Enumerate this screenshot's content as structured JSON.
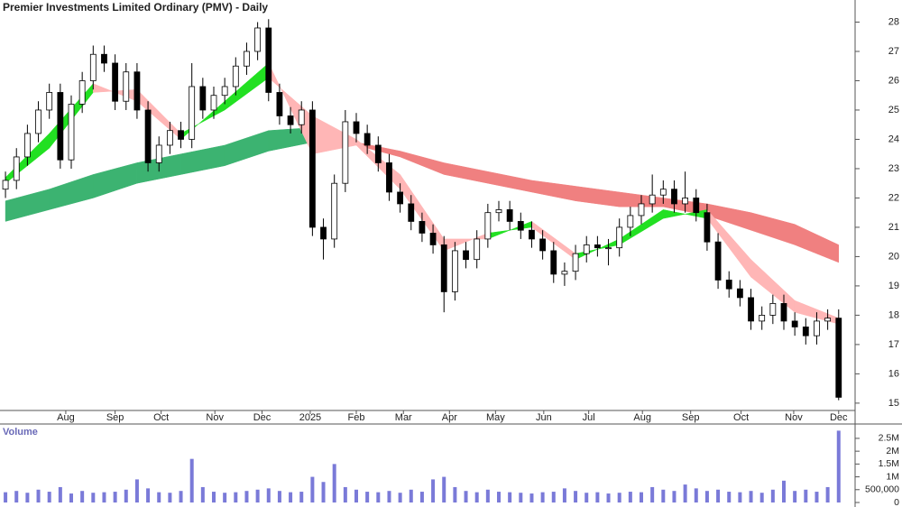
{
  "chart_data": [
    {
      "type": "candlestick",
      "title": "Premier Investments Limited Ordinary (PMV) - Daily",
      "x": [
        0,
        1,
        2,
        3,
        4,
        5,
        6,
        7,
        8,
        9,
        10,
        11,
        12,
        13,
        14,
        15,
        16,
        17,
        18,
        19,
        20,
        21,
        22,
        23,
        24,
        25,
        26,
        27,
        28,
        29,
        30,
        31,
        32,
        33,
        34,
        35,
        36,
        37,
        38,
        39,
        40,
        41,
        42,
        43,
        44,
        45,
        46,
        47,
        48,
        49,
        50,
        51,
        52,
        53,
        54,
        55,
        56,
        57,
        58,
        59,
        60,
        61,
        62,
        63,
        64,
        65,
        66,
        67,
        68,
        69,
        70,
        71,
        72,
        73,
        74,
        75,
        76
      ],
      "open": [
        22.3,
        22.6,
        23.4,
        24.2,
        25.0,
        25.6,
        23.3,
        25.2,
        26.0,
        26.9,
        26.6,
        25.3,
        26.3,
        25.0,
        23.2,
        23.8,
        24.3,
        24.0,
        25.8,
        25.0,
        25.5,
        25.8,
        26.5,
        27.0,
        27.8,
        25.6,
        24.8,
        24.5,
        25.0,
        21.0,
        20.6,
        22.5,
        24.6,
        24.2,
        23.8,
        23.2,
        22.2,
        21.8,
        21.2,
        20.8,
        20.4,
        18.8,
        20.2,
        19.9,
        20.6,
        21.5,
        21.6,
        21.2,
        20.9,
        20.6,
        20.2,
        19.4,
        19.5,
        20.1,
        20.4,
        20.3,
        20.3,
        21.0,
        21.4,
        21.8,
        22.1,
        22.3,
        21.8,
        22.0,
        21.5,
        20.5,
        19.2,
        18.9,
        18.6,
        17.8,
        18.0,
        18.4,
        17.8,
        17.6,
        17.3,
        17.8,
        17.9
      ],
      "high": [
        22.9,
        23.7,
        24.5,
        25.3,
        25.9,
        25.9,
        25.5,
        26.3,
        27.2,
        27.2,
        26.9,
        26.6,
        26.6,
        25.3,
        24.1,
        24.6,
        24.6,
        26.6,
        26.1,
        25.8,
        26.1,
        26.8,
        27.3,
        28.0,
        28.1,
        25.9,
        25.1,
        25.3,
        25.3,
        21.3,
        22.8,
        25.0,
        24.9,
        24.5,
        24.1,
        23.5,
        22.5,
        22.1,
        21.5,
        21.1,
        20.7,
        20.5,
        20.5,
        20.9,
        21.8,
        21.9,
        21.9,
        21.5,
        21.2,
        20.9,
        20.5,
        19.8,
        20.4,
        20.7,
        20.7,
        20.6,
        21.3,
        21.7,
        22.1,
        22.8,
        22.6,
        22.6,
        22.9,
        22.3,
        21.8,
        20.8,
        19.5,
        19.2,
        18.9,
        18.3,
        18.7,
        18.7,
        18.1,
        17.9,
        18.1,
        18.2,
        18.2
      ],
      "low": [
        22.0,
        22.3,
        23.1,
        23.9,
        24.7,
        23.0,
        23.0,
        24.9,
        25.7,
        26.3,
        25.0,
        25.0,
        24.7,
        22.9,
        22.9,
        23.5,
        23.7,
        23.7,
        24.7,
        24.7,
        25.2,
        25.5,
        26.2,
        26.7,
        25.3,
        24.5,
        24.2,
        24.2,
        20.7,
        19.9,
        20.3,
        22.2,
        23.9,
        23.5,
        22.9,
        21.9,
        21.5,
        20.9,
        20.5,
        20.1,
        18.1,
        18.5,
        19.6,
        19.6,
        20.3,
        21.2,
        20.9,
        20.6,
        20.3,
        19.9,
        19.1,
        19.0,
        19.2,
        19.8,
        20.0,
        19.7,
        20.0,
        20.7,
        21.1,
        21.5,
        21.8,
        21.5,
        21.5,
        21.2,
        20.2,
        18.9,
        18.6,
        18.3,
        17.5,
        17.5,
        17.7,
        17.5,
        17.3,
        17.0,
        17.0,
        17.5,
        15.1
      ],
      "close": [
        22.6,
        23.4,
        24.2,
        25.0,
        25.6,
        23.3,
        25.2,
        26.0,
        26.9,
        26.6,
        25.3,
        26.3,
        25.0,
        23.2,
        23.8,
        24.3,
        24.0,
        25.8,
        25.0,
        25.5,
        25.8,
        26.5,
        27.0,
        27.8,
        25.6,
        24.8,
        24.5,
        25.0,
        21.0,
        20.6,
        22.5,
        24.6,
        24.2,
        23.8,
        23.2,
        22.2,
        21.8,
        21.2,
        20.8,
        20.4,
        18.8,
        20.2,
        19.9,
        20.6,
        21.5,
        21.6,
        21.2,
        20.9,
        20.6,
        20.2,
        19.4,
        19.5,
        20.1,
        20.4,
        20.3,
        20.3,
        21.0,
        21.4,
        21.8,
        22.1,
        22.3,
        21.8,
        22.0,
        21.5,
        20.5,
        19.2,
        18.9,
        18.6,
        17.8,
        18.0,
        18.4,
        17.8,
        17.6,
        17.3,
        17.8,
        17.9,
        15.2
      ],
      "ribbons": [
        {
          "x": [
            0,
            4,
            8,
            12,
            16,
            20,
            24,
            28,
            32,
            36,
            40,
            44,
            48,
            52,
            56,
            60,
            64,
            68,
            72,
            76
          ],
          "fast": [
            21.9,
            22.3,
            22.8,
            23.2,
            23.5,
            23.8,
            24.3,
            24.4,
            23.8,
            23.4,
            22.8,
            22.5,
            22.2,
            21.9,
            21.7,
            21.7,
            21.4,
            20.9,
            20.4,
            19.8
          ],
          "slow": [
            21.2,
            21.6,
            22.0,
            22.5,
            22.8,
            23.1,
            23.6,
            23.9,
            23.9,
            23.6,
            23.2,
            22.9,
            22.6,
            22.4,
            22.2,
            22.0,
            21.8,
            21.5,
            21.1,
            20.4
          ],
          "up_color": "#3cb371",
          "down_color": "#f08080"
        },
        {
          "x": [
            0,
            4,
            8,
            12,
            16,
            20,
            24,
            28,
            32,
            36,
            40,
            44,
            48,
            52,
            56,
            60,
            64,
            68,
            72,
            76
          ],
          "fast": [
            22.7,
            24.2,
            25.9,
            25.3,
            24.0,
            25.3,
            26.6,
            23.5,
            23.8,
            22.3,
            20.2,
            20.8,
            21.0,
            19.9,
            20.6,
            21.6,
            21.3,
            19.3,
            18.1,
            17.7
          ],
          "slow": [
            22.5,
            23.7,
            25.6,
            25.7,
            24.2,
            25.0,
            26.1,
            24.8,
            24.0,
            22.8,
            20.6,
            20.6,
            21.2,
            20.1,
            20.4,
            21.3,
            21.6,
            19.9,
            18.5,
            17.9
          ],
          "up_color": "#22e022",
          "down_color": "#ffb6b6"
        }
      ],
      "xlim": [
        -0.5,
        77.5
      ],
      "ylim": [
        14.75,
        28.6
      ],
      "xticks": [
        {
          "value": 5.5,
          "label": "Aug"
        },
        {
          "value": 10,
          "label": "Sep"
        },
        {
          "value": 14.2,
          "label": "Oct"
        },
        {
          "value": 19.1,
          "label": "Nov"
        },
        {
          "value": 23.4,
          "label": "Dec"
        },
        {
          "value": 27.8,
          "label": "2025"
        },
        {
          "value": 32,
          "label": "Feb"
        },
        {
          "value": 36.3,
          "label": "Mar"
        },
        {
          "value": 40.5,
          "label": "Apr"
        },
        {
          "value": 44.7,
          "label": "May"
        },
        {
          "value": 49.1,
          "label": "Jun"
        },
        {
          "value": 53.2,
          "label": "Jul"
        },
        {
          "value": 58.1,
          "label": "Aug"
        },
        {
          "value": 62.5,
          "label": "Sep"
        },
        {
          "value": 67.1,
          "label": "Oct"
        },
        {
          "value": 71.9,
          "label": "Nov"
        },
        {
          "value": 76,
          "label": "Dec"
        }
      ],
      "yticks": [
        15,
        16,
        17,
        18,
        19,
        20,
        21,
        22,
        23,
        24,
        25,
        26,
        27,
        28
      ],
      "up_color": "#ffffff",
      "down_color": "#000000"
    },
    {
      "type": "volume",
      "title": "Volume",
      "color": "#7a7ad8",
      "values": [
        400000,
        450000,
        380000,
        500000,
        420000,
        600000,
        350000,
        450000,
        380000,
        400000,
        420000,
        500000,
        900000,
        550000,
        400000,
        380000,
        450000,
        1700000,
        600000,
        420000,
        380000,
        400000,
        450000,
        500000,
        550000,
        450000,
        400000,
        420000,
        1000000,
        800000,
        1500000,
        600000,
        500000,
        420000,
        400000,
        450000,
        380000,
        500000,
        420000,
        900000,
        1000000,
        600000,
        450000,
        400000,
        500000,
        420000,
        400000,
        380000,
        350000,
        400000,
        420000,
        550000,
        450000,
        380000,
        400000,
        350000,
        380000,
        420000,
        400000,
        600000,
        500000,
        450000,
        700000,
        550000,
        450000,
        500000,
        420000,
        400000,
        450000,
        380000,
        500000,
        850000,
        450000,
        500000,
        420000,
        600000,
        2800000
      ],
      "ylim": [
        0,
        3060000
      ],
      "yticks": [
        0,
        {
          "value": 500000,
          "label": "500,000"
        },
        {
          "value": 1000000,
          "label": "1M"
        },
        {
          "value": 1500000,
          "label": "1.5M"
        },
        {
          "value": 2000000,
          "label": "2M"
        },
        {
          "value": 2500000,
          "label": "2.5M"
        }
      ]
    }
  ]
}
